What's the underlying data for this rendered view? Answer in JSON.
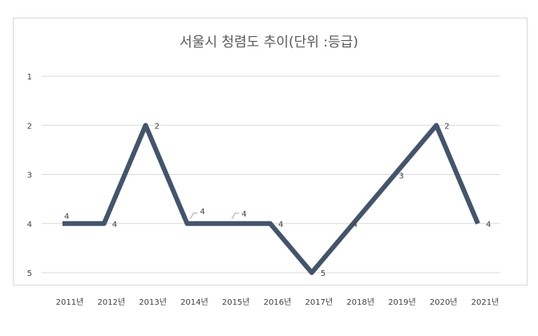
{
  "chart_data": {
    "type": "line",
    "title": "서울시 청렴도 추이(단위 :등급)",
    "categories": [
      "2011년",
      "2012년",
      "2013년",
      "2014년",
      "2015년",
      "2016년",
      "2017년",
      "2018년",
      "2019년",
      "2020년",
      "2021년"
    ],
    "values": [
      4,
      4,
      2,
      4,
      4,
      4,
      5,
      4,
      3,
      2,
      4
    ],
    "data_labels": [
      "4",
      "4",
      "2",
      "4",
      "4",
      "4",
      "5",
      "4",
      "3",
      "2",
      "4"
    ],
    "y_ticks": [
      "1",
      "2",
      "3",
      "4",
      "5"
    ],
    "ylim": [
      1,
      5
    ],
    "y_inverted": true,
    "grid": true,
    "legend": "none",
    "line_color": "#44546a",
    "grid_color": "#d9d9d9"
  }
}
